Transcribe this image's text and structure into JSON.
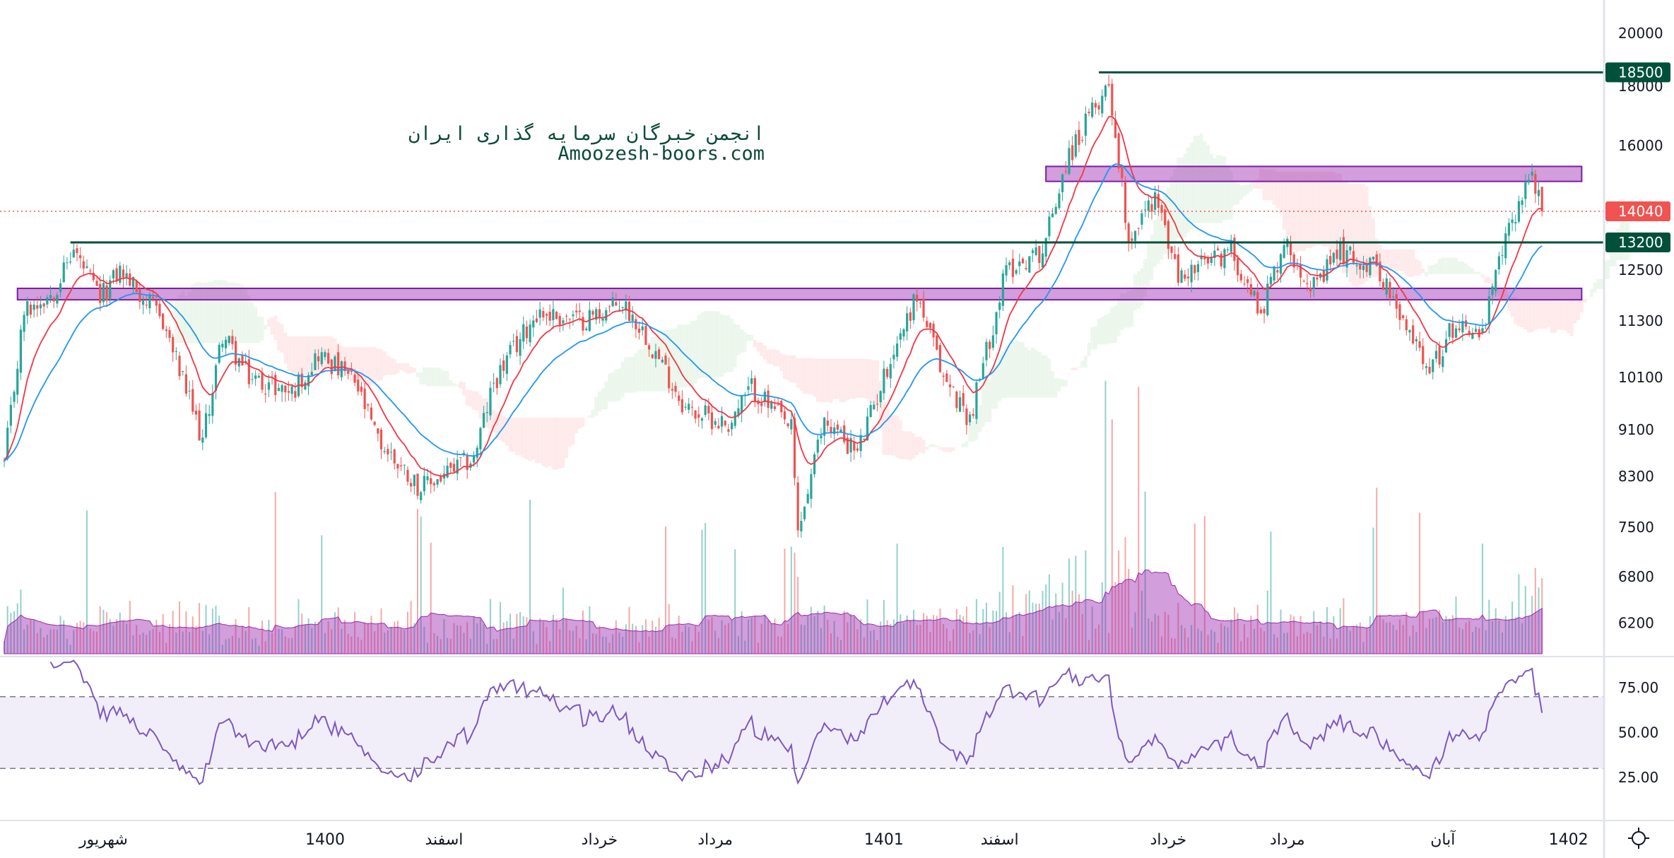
{
  "chart_data": {
    "type": "candlestick",
    "watermark": {
      "line1": "انجمن خبرگان سرمایه گذاری ایران",
      "line2": "Amoozesh-boors.com"
    },
    "price_axis": {
      "scale": "log",
      "ticks": [
        20000,
        18000,
        16000,
        12500,
        11300,
        10100,
        9100,
        8300,
        7500,
        6800,
        6200
      ]
    },
    "rsi_axis": {
      "ticks": [
        "75.00",
        "50.00",
        "25.00"
      ],
      "upper_band": 70,
      "lower_band": 30
    },
    "time_axis": {
      "labels": [
        {
          "text": "شهریور",
          "index": 30
        },
        {
          "text": "1400",
          "index": 97
        },
        {
          "text": "اسفند",
          "index": 133
        },
        {
          "text": "خرداد",
          "index": 180
        },
        {
          "text": "مرداد",
          "index": 215
        },
        {
          "text": "1401",
          "index": 266
        },
        {
          "text": "اسفند",
          "index": 301
        },
        {
          "text": "خرداد",
          "index": 352
        },
        {
          "text": "مرداد",
          "index": 388
        },
        {
          "text": "آبان",
          "index": 435
        },
        {
          "text": "1402",
          "index": 473
        }
      ]
    },
    "last_price": {
      "value": 14040,
      "label": "14040",
      "color": "#f05350"
    },
    "horizontal_levels": [
      {
        "value": 18500,
        "label": "18500",
        "from_index": 331,
        "color": "#00503a"
      },
      {
        "value": 13200,
        "label": "13200",
        "from_index": 20,
        "color": "#00503a"
      }
    ],
    "zones": [
      {
        "low": 14900,
        "high": 15350,
        "from_index": 315,
        "to_index": 477,
        "color": "#9c27b0"
      },
      {
        "low": 11780,
        "high": 12050,
        "from_index": 4,
        "to_index": 477,
        "color": "#9c27b0"
      }
    ],
    "close_keypoints": [
      [
        0,
        8500
      ],
      [
        6,
        11500
      ],
      [
        15,
        12000
      ],
      [
        21,
        13000
      ],
      [
        29,
        11800
      ],
      [
        35,
        12500
      ],
      [
        48,
        11300
      ],
      [
        60,
        8900
      ],
      [
        66,
        11000
      ],
      [
        74,
        10100
      ],
      [
        87,
        9800
      ],
      [
        95,
        10600
      ],
      [
        106,
        10000
      ],
      [
        113,
        8900
      ],
      [
        126,
        8100
      ],
      [
        142,
        8600
      ],
      [
        148,
        10000
      ],
      [
        161,
        11500
      ],
      [
        174,
        11300
      ],
      [
        187,
        11700
      ],
      [
        194,
        11000
      ],
      [
        206,
        9500
      ],
      [
        219,
        9200
      ],
      [
        226,
        9900
      ],
      [
        238,
        9100
      ],
      [
        240,
        7400
      ],
      [
        248,
        9300
      ],
      [
        258,
        8700
      ],
      [
        268,
        10500
      ],
      [
        276,
        11900
      ],
      [
        284,
        10100
      ],
      [
        292,
        9300
      ],
      [
        303,
        12500
      ],
      [
        314,
        13000
      ],
      [
        321,
        15500
      ],
      [
        331,
        17500
      ],
      [
        334,
        18200
      ],
      [
        337,
        15500
      ],
      [
        340,
        13300
      ],
      [
        348,
        14500
      ],
      [
        355,
        12300
      ],
      [
        371,
        13000
      ],
      [
        380,
        11500
      ],
      [
        387,
        13200
      ],
      [
        397,
        12000
      ],
      [
        403,
        13000
      ],
      [
        416,
        12500
      ],
      [
        422,
        11300
      ],
      [
        432,
        10300
      ],
      [
        439,
        11300
      ],
      [
        447,
        11000
      ],
      [
        453,
        13000
      ],
      [
        458,
        14300
      ],
      [
        462,
        15200
      ],
      [
        465,
        14040
      ]
    ],
    "colors": {
      "up": "#26a69a",
      "down": "#ef5350",
      "ma_fast": "#f23645",
      "ma_slow": "#2196f3",
      "rsi": "#7e57c2",
      "volume_ma": "#9c27b0"
    },
    "indicators": [
      "Ichimoku Cloud",
      "MA fast",
      "MA slow",
      "Volume",
      "Volume MA",
      "RSI 14"
    ]
  }
}
